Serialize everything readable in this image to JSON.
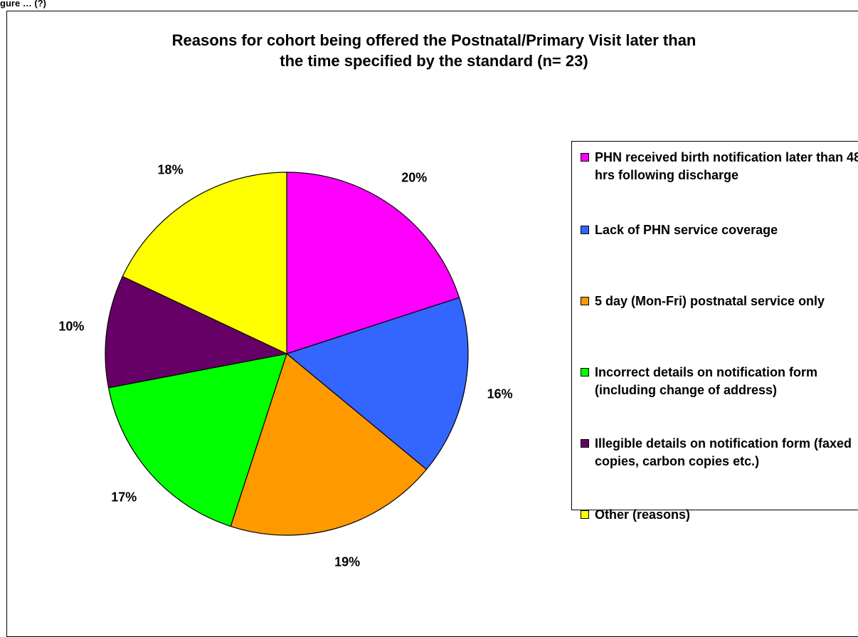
{
  "figure": {
    "caption": "gure … (?)"
  },
  "chart_data": {
    "type": "pie",
    "title": "Reasons for cohort being offered the Postnatal/Primary Visit later than the time specified by the standard (n= 23)",
    "title_lines": [
      "Reasons for cohort being offered the Postnatal/Primary Visit later than",
      "the time specified by the standard (n= 23)"
    ],
    "legend_position": "right",
    "slices": [
      {
        "label": "PHN received birth notification later than 48 hrs following discharge",
        "value": 20,
        "display": "20%",
        "color": "#FF00FF"
      },
      {
        "label": "Lack of PHN service coverage",
        "value": 16,
        "display": "16%",
        "color": "#3366FF"
      },
      {
        "label": "5 day (Mon-Fri) postnatal service only",
        "value": 19,
        "display": "19%",
        "color": "#FF9900"
      },
      {
        "label": "Incorrect details on notification form (including change of address)",
        "value": 17,
        "display": "17%",
        "color": "#00FF00"
      },
      {
        "label": "Illegible details on notification form (faxed copies, carbon copies etc.)",
        "value": 10,
        "display": "10%",
        "color": "#660066"
      },
      {
        "label": "Other (reasons)",
        "value": 18,
        "display": "18%",
        "color": "#FFFF00"
      }
    ]
  }
}
